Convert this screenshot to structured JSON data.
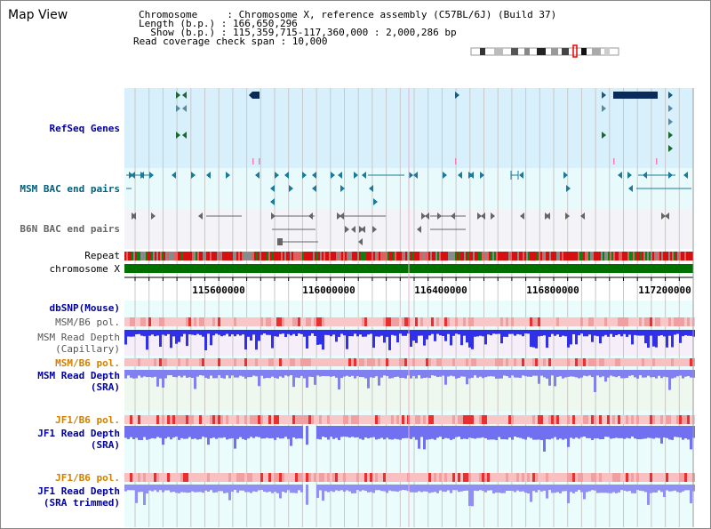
{
  "title": "Map View",
  "header": {
    "chromosome_line": "Chromosome     : Chromosome X, reference assembly (C57BL/6J) (Build 37)",
    "length_line": "Length (b.p.) : 166,650,296",
    "show_line": "  Show (b.p.) : 115,359,715-117,360,000 : 2,000,286 bp",
    "coverage_line": "Read coverage check span : 10,000"
  },
  "tracks": {
    "refseq": "RefSeq Genes",
    "msm_bac": "MSM BAC end pairs",
    "b6n_bac": "B6N BAC end pairs",
    "repeat": "Repeat",
    "chromosome": "chromosome X",
    "dbsnp": "dbSNP(Mouse)",
    "msm_b6_pol": "MSM/B6 pol.",
    "msm_depth_cap": "MSM Read Depth\n(Capillary)",
    "msm_b6_pol2": "MSM/B6 pol.",
    "msm_depth_sra": "MSM Read Depth\n(SRA)",
    "jf1_b6_pol": "JF1/B6 pol.",
    "jf1_depth_sra": "JF1 Read Depth\n(SRA)",
    "jf1_b6_pol2": "JF1/B6 pol.",
    "jf1_depth_trim": "JF1 Read Depth\n(SRA trimmed)"
  },
  "axis": {
    "ticks": [
      "115600000",
      "116000000",
      "116400000",
      "116800000",
      "117200000"
    ]
  },
  "colors": {
    "label_blue": "#0000a0",
    "label_orange": "#d08000",
    "label_teal": "#006080",
    "refseq_bg": "#d8f0fc",
    "bac_bg": "#e8fafc",
    "chrom_green": "#007000"
  }
}
